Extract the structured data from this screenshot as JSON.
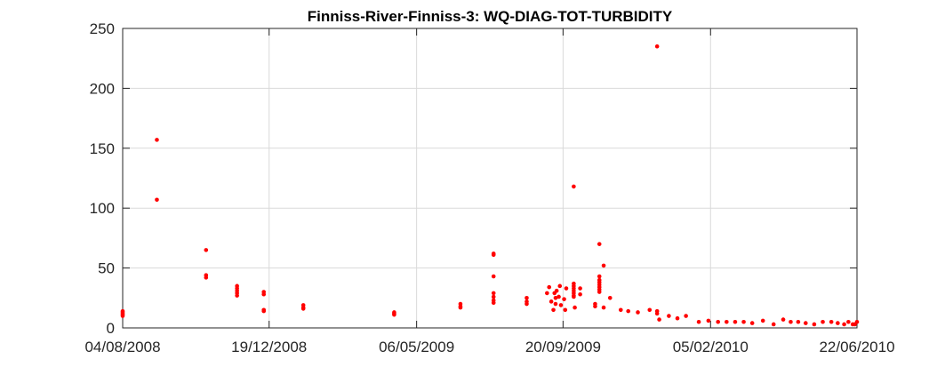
{
  "chart_data": {
    "type": "scatter",
    "title": "Finniss-River-Finniss-3: WQ-DIAG-TOT-TURBIDITY",
    "xlabel": "",
    "ylabel": "",
    "x_range": [
      "04/08/2008",
      "22/06/2010"
    ],
    "ylim": [
      0,
      250
    ],
    "x_ticks": [
      "04/08/2008",
      "19/12/2008",
      "06/05/2009",
      "20/09/2009",
      "05/02/2010",
      "22/06/2010"
    ],
    "y_ticks": [
      0,
      50,
      100,
      150,
      200,
      250
    ],
    "grid": true,
    "marker_color": "#ff0000",
    "points": [
      {
        "x": "04/08/2008",
        "y": 10
      },
      {
        "x": "04/08/2008",
        "y": 11
      },
      {
        "x": "04/08/2008",
        "y": 12
      },
      {
        "x": "04/08/2008",
        "y": 13
      },
      {
        "x": "04/08/2008",
        "y": 14
      },
      {
        "x": "05/09/2008",
        "y": 157
      },
      {
        "x": "05/09/2008",
        "y": 107
      },
      {
        "x": "21/10/2008",
        "y": 65
      },
      {
        "x": "21/10/2008",
        "y": 44
      },
      {
        "x": "21/10/2008",
        "y": 42
      },
      {
        "x": "19/11/2008",
        "y": 35
      },
      {
        "x": "19/11/2008",
        "y": 33
      },
      {
        "x": "19/11/2008",
        "y": 31
      },
      {
        "x": "19/11/2008",
        "y": 29
      },
      {
        "x": "19/11/2008",
        "y": 27
      },
      {
        "x": "14/12/2008",
        "y": 30
      },
      {
        "x": "14/12/2008",
        "y": 28
      },
      {
        "x": "14/12/2008",
        "y": 15
      },
      {
        "x": "14/12/2008",
        "y": 14
      },
      {
        "x": "20/01/2009",
        "y": 19
      },
      {
        "x": "20/01/2009",
        "y": 17
      },
      {
        "x": "20/01/2009",
        "y": 16
      },
      {
        "x": "15/04/2009",
        "y": 13
      },
      {
        "x": "15/04/2009",
        "y": 12
      },
      {
        "x": "15/04/2009",
        "y": 11
      },
      {
        "x": "16/06/2009",
        "y": 20
      },
      {
        "x": "16/06/2009",
        "y": 18
      },
      {
        "x": "16/06/2009",
        "y": 17
      },
      {
        "x": "17/07/2009",
        "y": 62
      },
      {
        "x": "17/07/2009",
        "y": 61
      },
      {
        "x": "17/07/2009",
        "y": 43
      },
      {
        "x": "17/07/2009",
        "y": 29
      },
      {
        "x": "17/07/2009",
        "y": 26
      },
      {
        "x": "17/07/2009",
        "y": 23
      },
      {
        "x": "17/07/2009",
        "y": 21
      },
      {
        "x": "17/08/2009",
        "y": 25
      },
      {
        "x": "17/08/2009",
        "y": 22
      },
      {
        "x": "17/08/2009",
        "y": 20
      },
      {
        "x": "05/09/2009",
        "y": 29
      },
      {
        "x": "07/09/2009",
        "y": 34
      },
      {
        "x": "09/09/2009",
        "y": 22
      },
      {
        "x": "11/09/2009",
        "y": 15
      },
      {
        "x": "12/09/2009",
        "y": 29
      },
      {
        "x": "13/09/2009",
        "y": 25
      },
      {
        "x": "13/09/2009",
        "y": 20
      },
      {
        "x": "14/09/2009",
        "y": 31
      },
      {
        "x": "16/09/2009",
        "y": 26
      },
      {
        "x": "17/09/2009",
        "y": 35
      },
      {
        "x": "18/09/2009",
        "y": 19
      },
      {
        "x": "21/09/2009",
        "y": 24
      },
      {
        "x": "22/09/2009",
        "y": 15
      },
      {
        "x": "23/09/2009",
        "y": 33
      },
      {
        "x": "30/09/2009",
        "y": 118
      },
      {
        "x": "30/09/2009",
        "y": 37
      },
      {
        "x": "30/09/2009",
        "y": 35
      },
      {
        "x": "30/09/2009",
        "y": 33
      },
      {
        "x": "30/09/2009",
        "y": 31
      },
      {
        "x": "30/09/2009",
        "y": 29
      },
      {
        "x": "30/09/2009",
        "y": 27
      },
      {
        "x": "30/09/2009",
        "y": 26
      },
      {
        "x": "01/10/2009",
        "y": 17
      },
      {
        "x": "06/10/2009",
        "y": 33
      },
      {
        "x": "06/10/2009",
        "y": 28
      },
      {
        "x": "20/10/2009",
        "y": 20
      },
      {
        "x": "20/10/2009",
        "y": 18
      },
      {
        "x": "24/10/2009",
        "y": 70
      },
      {
        "x": "24/10/2009",
        "y": 43
      },
      {
        "x": "24/10/2009",
        "y": 40
      },
      {
        "x": "24/10/2009",
        "y": 38
      },
      {
        "x": "24/10/2009",
        "y": 36
      },
      {
        "x": "24/10/2009",
        "y": 34
      },
      {
        "x": "24/10/2009",
        "y": 32
      },
      {
        "x": "24/10/2009",
        "y": 30
      },
      {
        "x": "28/10/2009",
        "y": 52
      },
      {
        "x": "28/10/2009",
        "y": 17
      },
      {
        "x": "03/11/2009",
        "y": 25
      },
      {
        "x": "13/11/2009",
        "y": 15
      },
      {
        "x": "20/11/2009",
        "y": 14
      },
      {
        "x": "29/11/2009",
        "y": 13
      },
      {
        "x": "10/12/2009",
        "y": 15
      },
      {
        "x": "17/12/2009",
        "y": 235
      },
      {
        "x": "17/12/2009",
        "y": 14
      },
      {
        "x": "17/12/2009",
        "y": 12
      },
      {
        "x": "19/12/2009",
        "y": 7
      },
      {
        "x": "28/12/2009",
        "y": 10
      },
      {
        "x": "05/01/2010",
        "y": 8
      },
      {
        "x": "13/01/2010",
        "y": 10
      },
      {
        "x": "25/01/2010",
        "y": 5
      },
      {
        "x": "03/02/2010",
        "y": 6
      },
      {
        "x": "12/02/2010",
        "y": 5
      },
      {
        "x": "20/02/2010",
        "y": 5
      },
      {
        "x": "28/02/2010",
        "y": 5
      },
      {
        "x": "08/03/2010",
        "y": 5
      },
      {
        "x": "16/03/2010",
        "y": 4
      },
      {
        "x": "26/03/2010",
        "y": 6
      },
      {
        "x": "05/04/2010",
        "y": 3
      },
      {
        "x": "14/04/2010",
        "y": 7
      },
      {
        "x": "21/04/2010",
        "y": 5
      },
      {
        "x": "28/04/2010",
        "y": 5
      },
      {
        "x": "05/05/2010",
        "y": 4
      },
      {
        "x": "13/05/2010",
        "y": 3
      },
      {
        "x": "21/05/2010",
        "y": 5
      },
      {
        "x": "29/05/2010",
        "y": 5
      },
      {
        "x": "04/06/2010",
        "y": 4
      },
      {
        "x": "10/06/2010",
        "y": 3
      },
      {
        "x": "14/06/2010",
        "y": 5
      },
      {
        "x": "18/06/2010",
        "y": 3
      },
      {
        "x": "20/06/2010",
        "y": 3
      },
      {
        "x": "22/06/2010",
        "y": 5
      }
    ]
  }
}
